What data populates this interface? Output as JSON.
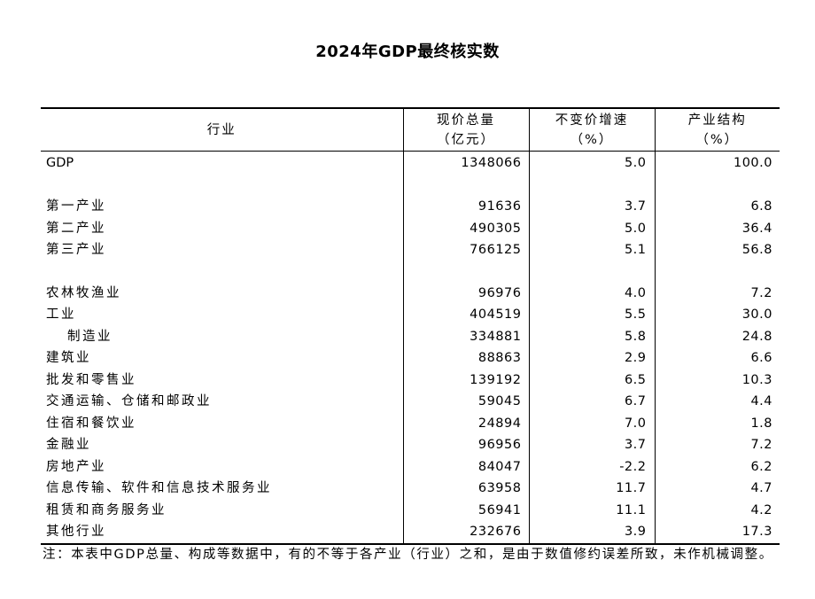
{
  "title": "2024年GDP最终核实数",
  "table": {
    "headers": [
      {
        "line1": "行业",
        "line2": ""
      },
      {
        "line1": "现价总量",
        "line2": "（亿元）"
      },
      {
        "line1": "不变价增速",
        "line2": "（%）"
      },
      {
        "line1": "产业结构",
        "line2": "（%）"
      }
    ],
    "rows": [
      {
        "name": "GDP",
        "value": "1348066",
        "growth": "5.0",
        "share": "100.0"
      },
      {
        "name": "",
        "value": "",
        "growth": "",
        "share": ""
      },
      {
        "name": "第一产业",
        "value": "91636",
        "growth": "3.7",
        "share": "6.8"
      },
      {
        "name": "第二产业",
        "value": "490305",
        "growth": "5.0",
        "share": "36.4"
      },
      {
        "name": "第三产业",
        "value": "766125",
        "growth": "5.1",
        "share": "56.8"
      },
      {
        "name": "",
        "value": "",
        "growth": "",
        "share": ""
      },
      {
        "name": "农林牧渔业",
        "value": "96976",
        "growth": "4.0",
        "share": "7.2"
      },
      {
        "name": "工业",
        "value": "404519",
        "growth": "5.5",
        "share": "30.0"
      },
      {
        "name": "制造业",
        "value": "334881",
        "growth": "5.8",
        "share": "24.8"
      },
      {
        "name": "建筑业",
        "value": "88863",
        "growth": "2.9",
        "share": "6.6"
      },
      {
        "name": "批发和零售业",
        "value": "139192",
        "growth": "6.5",
        "share": "10.3"
      },
      {
        "name": "交通运输、仓储和邮政业",
        "value": "59045",
        "growth": "6.7",
        "share": "4.4"
      },
      {
        "name": "住宿和餐饮业",
        "value": "24894",
        "growth": "7.0",
        "share": "1.8"
      },
      {
        "name": "金融业",
        "value": "96956",
        "growth": "3.7",
        "share": "7.2"
      },
      {
        "name": "房地产业",
        "value": "84047",
        "growth": "-2.2",
        "share": "6.2"
      },
      {
        "name": "信息传输、软件和信息技术服务业",
        "value": "63958",
        "growth": "11.7",
        "share": "4.7"
      },
      {
        "name": "租赁和商务服务业",
        "value": "56941",
        "growth": "11.1",
        "share": "4.2"
      },
      {
        "name": "其他行业",
        "value": "232676",
        "growth": "3.9",
        "share": "17.3"
      }
    ]
  },
  "note": "注：本表中GDP总量、构成等数据中，有的不等于各产业（行业）之和，是由于数值修约误差所致，未作机械调整。"
}
